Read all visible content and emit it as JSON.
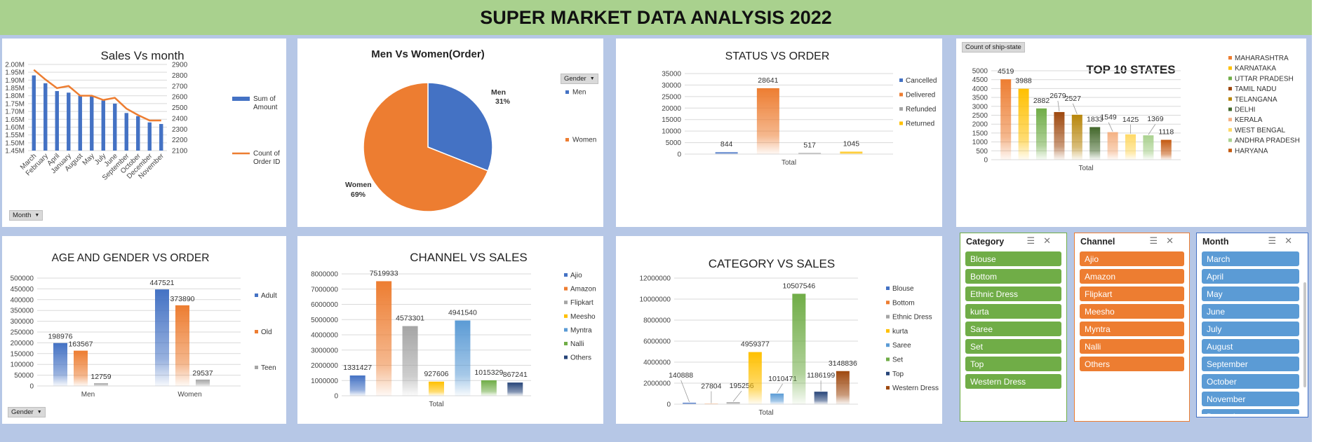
{
  "header": {
    "title": "SUPER MARKET DATA ANALYSIS 2022"
  },
  "colors": {
    "blue": "#4472c4",
    "orange": "#ed7d31",
    "gray": "#a5a5a5",
    "gold": "#ffc000",
    "lightblue": "#5b9bd5",
    "green": "#70ad47",
    "darkblue": "#264478",
    "brown": "#9e480e",
    "teal": "#636363",
    "darkgreen": "#43682b"
  },
  "filters": {
    "month": "Month",
    "gender_pie": "Gender",
    "gender_age": "Gender",
    "states": "Count of ship-state"
  },
  "slicers": {
    "category": {
      "title": "Category",
      "items": [
        "Blouse",
        "Bottom",
        "Ethnic Dress",
        "kurta",
        "Saree",
        "Set",
        "Top",
        "Western Dress"
      ]
    },
    "channel": {
      "title": "Channel",
      "items": [
        "Ajio",
        "Amazon",
        "Flipkart",
        "Meesho",
        "Myntra",
        "Nalli",
        "Others"
      ]
    },
    "month": {
      "title": "Month",
      "items": [
        "March",
        "April",
        "May",
        "June",
        "July",
        "August",
        "September",
        "October",
        "November",
        "December"
      ]
    }
  },
  "chart_data": [
    {
      "id": "sales_month",
      "type": "bar",
      "title": "Sales Vs month",
      "categories": [
        "March",
        "February",
        "April",
        "January",
        "August",
        "May",
        "July",
        "June",
        "September",
        "October",
        "December",
        "November"
      ],
      "series": [
        {
          "name": "Sum of Amount",
          "type": "bar",
          "axis": "left",
          "values": [
            1.93,
            1.88,
            1.83,
            1.82,
            1.8,
            1.8,
            1.77,
            1.75,
            1.69,
            1.67,
            1.63,
            1.62
          ]
        },
        {
          "name": "Count of Order ID",
          "type": "line",
          "axis": "right",
          "values": [
            2850,
            2760,
            2680,
            2700,
            2610,
            2610,
            2570,
            2590,
            2490,
            2430,
            2380,
            2380
          ]
        }
      ],
      "ylim": [
        1.45,
        2.0
      ],
      "yticks": [
        "1.45M",
        "1.50M",
        "1.55M",
        "1.60M",
        "1.65M",
        "1.70M",
        "1.75M",
        "1.80M",
        "1.85M",
        "1.90M",
        "1.95M",
        "2.00M"
      ],
      "y2lim": [
        2100,
        2900
      ],
      "y2ticks": [
        "2100",
        "2200",
        "2300",
        "2400",
        "2500",
        "2600",
        "2700",
        "2800",
        "2900"
      ]
    },
    {
      "id": "gender_pie",
      "type": "pie",
      "title": "Men Vs Women(Order)",
      "slices": [
        {
          "name": "Men",
          "value": 31,
          "label": "31%"
        },
        {
          "name": "Women",
          "value": 69,
          "label": "69%"
        }
      ],
      "legend": [
        "Men",
        "Women"
      ]
    },
    {
      "id": "status_order",
      "type": "bar",
      "title": "STATUS VS ORDER",
      "xlabel": "Total",
      "categories": [
        "Cancelled",
        "Delivered",
        "Refunded",
        "Returned"
      ],
      "values": [
        844,
        28641,
        517,
        1045
      ],
      "labels": [
        "844",
        "28641",
        "517",
        "1045"
      ],
      "ylim": [
        0,
        35000
      ],
      "yticks": [
        "0",
        "5000",
        "10000",
        "15000",
        "20000",
        "25000",
        "30000",
        "35000"
      ]
    },
    {
      "id": "top_states",
      "type": "bar",
      "title": "TOP 10 STATES",
      "xlabel": "Total",
      "categories": [
        "MAHARASHTRA",
        "KARNATAKA",
        "UTTAR PRADESH",
        "TAMIL NADU",
        "TELANGANA",
        "DELHI",
        "KERALA",
        "WEST BENGAL",
        "ANDHRA PRADESH",
        "HARYANA"
      ],
      "values": [
        4519,
        3988,
        2882,
        2679,
        2527,
        1833,
        1549,
        1425,
        1369,
        1118
      ],
      "labels": [
        "4519",
        "3988",
        "2882",
        "2679",
        "2527",
        "1833",
        "1549",
        "1425",
        "1369",
        "1118"
      ],
      "ylim": [
        0,
        5000
      ],
      "yticks": [
        "0",
        "500",
        "1000",
        "1500",
        "2000",
        "2500",
        "3000",
        "3500",
        "4000",
        "4500",
        "5000"
      ]
    },
    {
      "id": "age_gender",
      "type": "bar",
      "title": "AGE AND GENDER VS ORDER",
      "categories": [
        "Men",
        "Women"
      ],
      "series": [
        {
          "name": "Adult",
          "values": [
            198976,
            447521
          ],
          "labels": [
            "198976",
            "447521"
          ]
        },
        {
          "name": "Old",
          "values": [
            163567,
            373890
          ],
          "labels": [
            "163567",
            "373890"
          ]
        },
        {
          "name": "Teen",
          "values": [
            12759,
            29537
          ],
          "labels": [
            "12759",
            "29537"
          ]
        }
      ],
      "ylim": [
        0,
        500000
      ],
      "yticks": [
        "0",
        "50000",
        "100000",
        "150000",
        "200000",
        "250000",
        "300000",
        "350000",
        "400000",
        "450000",
        "500000"
      ]
    },
    {
      "id": "channel_sales",
      "type": "bar",
      "title": "CHANNEL VS SALES",
      "xlabel": "Total",
      "categories": [
        "Ajio",
        "Amazon",
        "Flipkart",
        "Meesho",
        "Myntra",
        "Nalli",
        "Others"
      ],
      "values": [
        1331427,
        7519933,
        4573301,
        927606,
        4941540,
        1015329,
        867241
      ],
      "labels": [
        "1331427",
        "7519933",
        "4573301",
        "927606",
        "4941540",
        "1015329",
        "867241"
      ],
      "ylim": [
        0,
        8000000
      ],
      "yticks": [
        "0",
        "1000000",
        "2000000",
        "3000000",
        "4000000",
        "5000000",
        "6000000",
        "7000000",
        "8000000"
      ]
    },
    {
      "id": "category_sales",
      "type": "bar",
      "title": "CATEGORY VS SALES",
      "xlabel": "Total",
      "categories": [
        "Blouse",
        "Bottom",
        "Ethnic Dress",
        "kurta",
        "Saree",
        "Set",
        "Top",
        "Western Dress"
      ],
      "values": [
        140888,
        27804,
        195256,
        4959377,
        1010471,
        10507546,
        1186199,
        3148836
      ],
      "labels": [
        "140888",
        "27804",
        "195256",
        "4959377",
        "1010471",
        "10507546",
        "1186199",
        "3148836"
      ],
      "ylim": [
        0,
        12000000
      ],
      "yticks": [
        "0",
        "2000000",
        "4000000",
        "6000000",
        "8000000",
        "10000000",
        "12000000"
      ]
    }
  ]
}
